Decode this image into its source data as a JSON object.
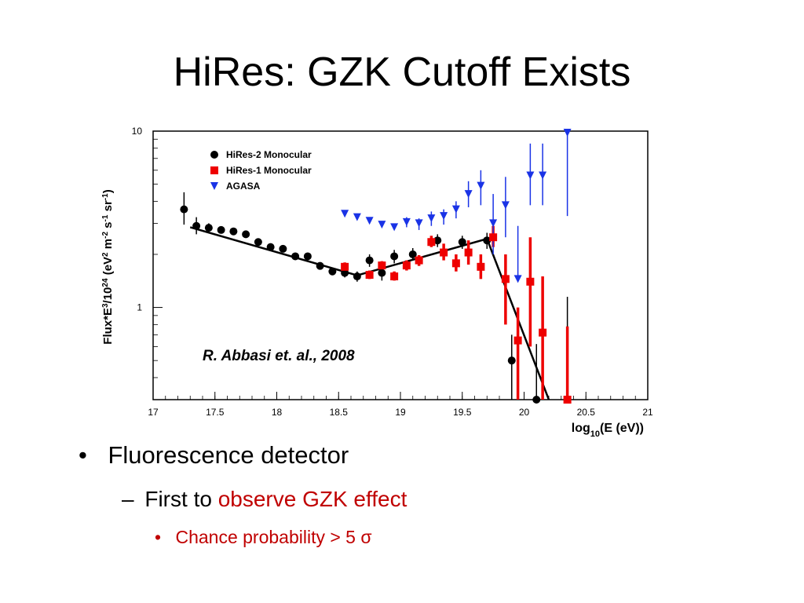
{
  "slide": {
    "title": "HiRes: GZK Cutoff Exists"
  },
  "bullets": {
    "level1_marker": "•",
    "level1_text": "Fluorescence detector",
    "level2_marker": "–",
    "level2_prefix": "First to ",
    "level2_highlight": "observe GZK effect",
    "level3_marker": "•",
    "level3_text": "Chance probability > 5 σ"
  },
  "colors": {
    "hires2": "#000000",
    "hires1": "#ee0000",
    "agasa": "#1a33e6",
    "highlight": "#c00000"
  },
  "chart_data": {
    "type": "scatter",
    "xlabel": "log10(E (eV))",
    "ylabel": "Flux*E³/10²⁴ (eV² m⁻² s⁻¹ sr⁻¹)",
    "xlim": [
      17,
      21
    ],
    "ylim": [
      0.3,
      10
    ],
    "yscale": "log",
    "x_ticks": [
      17,
      17.5,
      18,
      18.5,
      19,
      19.5,
      20,
      20.5,
      21
    ],
    "x_tick_labels": [
      "17",
      "17.5",
      "18",
      "18.5",
      "19",
      "19.5",
      "20",
      "20.5",
      "21"
    ],
    "y_ticks": [
      1,
      10
    ],
    "y_tick_labels": [
      "1",
      "10"
    ],
    "annotation": "R. Abbasi et. al., 2008",
    "legend_position": "top-left",
    "fit_line": {
      "points": [
        [
          17.3,
          2.85
        ],
        [
          18.65,
          1.52
        ],
        [
          19.7,
          2.45
        ],
        [
          20.2,
          0.3
        ]
      ]
    },
    "series": [
      {
        "name": "HiRes-2 Monocular",
        "marker": "circle",
        "points": [
          {
            "x": 17.25,
            "y": 3.6,
            "lo": 2.95,
            "hi": 4.5
          },
          {
            "x": 17.35,
            "y": 2.9,
            "lo": 2.6,
            "hi": 3.25
          },
          {
            "x": 17.45,
            "y": 2.83,
            "lo": 2.65,
            "hi": 3.0
          },
          {
            "x": 17.55,
            "y": 2.75
          },
          {
            "x": 17.65,
            "y": 2.7
          },
          {
            "x": 17.75,
            "y": 2.6
          },
          {
            "x": 17.85,
            "y": 2.35
          },
          {
            "x": 17.95,
            "y": 2.2
          },
          {
            "x": 18.05,
            "y": 2.15
          },
          {
            "x": 18.15,
            "y": 1.95
          },
          {
            "x": 18.25,
            "y": 1.95
          },
          {
            "x": 18.35,
            "y": 1.72
          },
          {
            "x": 18.45,
            "y": 1.6
          },
          {
            "x": 18.55,
            "y": 1.57,
            "lo": 1.48,
            "hi": 1.67
          },
          {
            "x": 18.65,
            "y": 1.5,
            "lo": 1.4,
            "hi": 1.6
          },
          {
            "x": 18.75,
            "y": 1.85,
            "lo": 1.7,
            "hi": 2.0
          },
          {
            "x": 18.85,
            "y": 1.57,
            "lo": 1.42,
            "hi": 1.73
          },
          {
            "x": 18.95,
            "y": 1.95,
            "lo": 1.78,
            "hi": 2.12
          },
          {
            "x": 19.1,
            "y": 2.0,
            "lo": 1.85,
            "hi": 2.17
          },
          {
            "x": 19.3,
            "y": 2.4,
            "lo": 2.2,
            "hi": 2.6
          },
          {
            "x": 19.5,
            "y": 2.35,
            "lo": 2.15,
            "hi": 2.55
          },
          {
            "x": 19.7,
            "y": 2.4,
            "lo": 2.15,
            "hi": 2.65
          },
          {
            "x": 19.9,
            "y": 0.5,
            "lo": 0.3,
            "hi": 0.7
          },
          {
            "x": 20.1,
            "y": 0.3,
            "lo": 0.3,
            "hi": 0.62
          },
          {
            "x": 20.35,
            "y": 0.3,
            "lo": 0.3,
            "hi": 1.15
          }
        ]
      },
      {
        "name": "HiRes-1 Monocular",
        "marker": "square",
        "points": [
          {
            "x": 18.55,
            "y": 1.7,
            "lo": 1.6,
            "hi": 1.8
          },
          {
            "x": 18.75,
            "y": 1.53,
            "lo": 1.45,
            "hi": 1.62
          },
          {
            "x": 18.85,
            "y": 1.73,
            "lo": 1.63,
            "hi": 1.83
          },
          {
            "x": 18.95,
            "y": 1.5,
            "lo": 1.42,
            "hi": 1.6
          },
          {
            "x": 19.05,
            "y": 1.73,
            "lo": 1.62,
            "hi": 1.85
          },
          {
            "x": 19.15,
            "y": 1.85,
            "lo": 1.72,
            "hi": 1.98
          },
          {
            "x": 19.25,
            "y": 2.35,
            "lo": 2.2,
            "hi": 2.55
          },
          {
            "x": 19.35,
            "y": 2.05,
            "lo": 1.85,
            "hi": 2.3
          },
          {
            "x": 19.45,
            "y": 1.78,
            "lo": 1.6,
            "hi": 2.0
          },
          {
            "x": 19.55,
            "y": 2.05,
            "lo": 1.75,
            "hi": 2.4
          },
          {
            "x": 19.65,
            "y": 1.7,
            "lo": 1.45,
            "hi": 2.0
          },
          {
            "x": 19.75,
            "y": 2.5,
            "lo": 2.2,
            "hi": 2.9
          },
          {
            "x": 19.85,
            "y": 1.45,
            "lo": 0.8,
            "hi": 2.0
          },
          {
            "x": 19.95,
            "y": 0.65,
            "lo": 0.3,
            "hi": 1.0
          },
          {
            "x": 20.05,
            "y": 1.4,
            "lo": 0.6,
            "hi": 2.5
          },
          {
            "x": 20.15,
            "y": 0.72,
            "lo": 0.3,
            "hi": 1.5
          },
          {
            "x": 20.35,
            "y": 0.3,
            "lo": 0.3,
            "hi": 0.78
          }
        ]
      },
      {
        "name": "AGASA",
        "marker": "triangle-down",
        "points": [
          {
            "x": 18.55,
            "y": 3.4
          },
          {
            "x": 18.65,
            "y": 3.25
          },
          {
            "x": 18.75,
            "y": 3.1
          },
          {
            "x": 18.85,
            "y": 2.95
          },
          {
            "x": 18.95,
            "y": 2.85
          },
          {
            "x": 19.05,
            "y": 3.05,
            "lo": 2.85,
            "hi": 3.25
          },
          {
            "x": 19.15,
            "y": 3.0,
            "lo": 2.75,
            "hi": 3.2
          },
          {
            "x": 19.25,
            "y": 3.2,
            "lo": 2.9,
            "hi": 3.5
          },
          {
            "x": 19.35,
            "y": 3.3,
            "lo": 2.95,
            "hi": 3.6
          },
          {
            "x": 19.45,
            "y": 3.6,
            "lo": 3.2,
            "hi": 4.0
          },
          {
            "x": 19.55,
            "y": 4.4,
            "lo": 3.7,
            "hi": 5.2
          },
          {
            "x": 19.65,
            "y": 4.9,
            "lo": 3.8,
            "hi": 6.0
          },
          {
            "x": 19.75,
            "y": 3.0,
            "lo": 2.0,
            "hi": 4.4
          },
          {
            "x": 19.85,
            "y": 3.8,
            "lo": 2.5,
            "hi": 5.5
          },
          {
            "x": 19.95,
            "y": 1.45,
            "lo": 1.45,
            "hi": 2.9
          },
          {
            "x": 20.05,
            "y": 5.6,
            "lo": 3.8,
            "hi": 8.5
          },
          {
            "x": 20.15,
            "y": 5.6,
            "lo": 3.8,
            "hi": 8.5
          },
          {
            "x": 20.35,
            "y": 9.8,
            "lo": 3.3,
            "hi": 10
          }
        ]
      }
    ]
  }
}
